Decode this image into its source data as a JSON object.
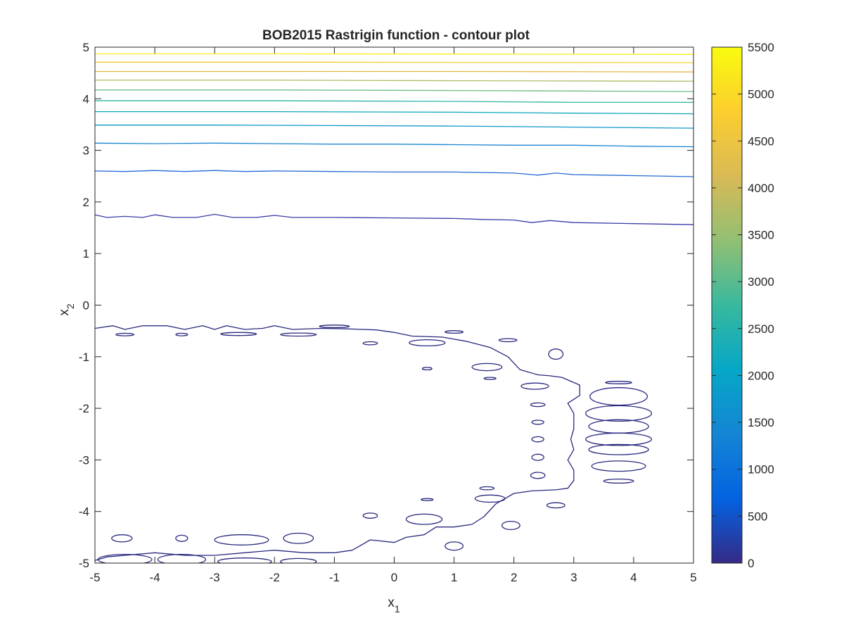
{
  "chart_data": {
    "type": "contour",
    "title": "BOB2015 Rastrigin function - contour plot",
    "xlabel": {
      "base": "x",
      "subscript": "1"
    },
    "ylabel": {
      "base": "x",
      "subscript": "2"
    },
    "xlim": [
      -5,
      5
    ],
    "ylim": [
      -5,
      5
    ],
    "xticks": [
      -5,
      -4,
      -3,
      -2,
      -1,
      0,
      1,
      2,
      3,
      4,
      5
    ],
    "yticks": [
      -5,
      -4,
      -3,
      -2,
      -1,
      0,
      1,
      2,
      3,
      4,
      5
    ],
    "grid": false,
    "colorbar": {
      "min": 0,
      "max": 5500,
      "ticks": [
        0,
        500,
        1000,
        1500,
        2000,
        2500,
        3000,
        3500,
        4000,
        4500,
        5000,
        5500
      ],
      "colormap": [
        "#352a87",
        "#0363e1",
        "#1485d4",
        "#06a7c6",
        "#38b99e",
        "#92bf73",
        "#d9ba56",
        "#fcce2e",
        "#f9fb0e"
      ]
    },
    "level_lines": [
      {
        "level": 500,
        "color": "#3a3aa8",
        "points": [
          [
            -5,
            1.75
          ],
          [
            -4.8,
            1.7
          ],
          [
            -4.5,
            1.72
          ],
          [
            -4.2,
            1.7
          ],
          [
            -4.0,
            1.75
          ],
          [
            -3.7,
            1.7
          ],
          [
            -3.3,
            1.7
          ],
          [
            -3.0,
            1.76
          ],
          [
            -2.7,
            1.7
          ],
          [
            -2.3,
            1.7
          ],
          [
            -2.0,
            1.74
          ],
          [
            -1.7,
            1.7
          ],
          [
            -1.0,
            1.7
          ],
          [
            0.0,
            1.69
          ],
          [
            1.0,
            1.68
          ],
          [
            1.5,
            1.66
          ],
          [
            2.0,
            1.65
          ],
          [
            2.3,
            1.6
          ],
          [
            2.6,
            1.64
          ],
          [
            3.0,
            1.6
          ],
          [
            4.0,
            1.58
          ],
          [
            5.0,
            1.56
          ]
        ]
      },
      {
        "level": 1000,
        "color": "#2569d4",
        "points": [
          [
            -5,
            2.6
          ],
          [
            -4.5,
            2.59
          ],
          [
            -4.0,
            2.61
          ],
          [
            -3.5,
            2.59
          ],
          [
            -3.0,
            2.61
          ],
          [
            -2.5,
            2.59
          ],
          [
            -2.0,
            2.6
          ],
          [
            -1.0,
            2.59
          ],
          [
            0.0,
            2.58
          ],
          [
            1.0,
            2.58
          ],
          [
            2.0,
            2.56
          ],
          [
            2.4,
            2.52
          ],
          [
            2.7,
            2.56
          ],
          [
            3.0,
            2.53
          ],
          [
            4.0,
            2.51
          ],
          [
            5.0,
            2.49
          ]
        ]
      },
      {
        "level": 1500,
        "color": "#1a85d0",
        "points": [
          [
            -5,
            3.14
          ],
          [
            -4.0,
            3.13
          ],
          [
            -3.0,
            3.14
          ],
          [
            -2.0,
            3.13
          ],
          [
            -1.0,
            3.12
          ],
          [
            0.0,
            3.12
          ],
          [
            1.0,
            3.11
          ],
          [
            2.0,
            3.1
          ],
          [
            3.0,
            3.1
          ],
          [
            4.0,
            3.08
          ],
          [
            5.0,
            3.07
          ]
        ]
      },
      {
        "level": 2000,
        "color": "#0f98c8",
        "points": [
          [
            -5,
            3.49
          ],
          [
            -3.0,
            3.49
          ],
          [
            -1.0,
            3.48
          ],
          [
            1.0,
            3.47
          ],
          [
            3.0,
            3.45
          ],
          [
            5.0,
            3.43
          ]
        ]
      },
      {
        "level": 2500,
        "color": "#0aa6b9",
        "points": [
          [
            -5,
            3.75
          ],
          [
            -2.0,
            3.75
          ],
          [
            1.0,
            3.74
          ],
          [
            3.0,
            3.72
          ],
          [
            5.0,
            3.71
          ]
        ]
      },
      {
        "level": 3000,
        "color": "#2cb4a3",
        "points": [
          [
            -5,
            3.96
          ],
          [
            -2.0,
            3.96
          ],
          [
            1.0,
            3.95
          ],
          [
            3.0,
            3.93
          ],
          [
            5.0,
            3.93
          ]
        ]
      },
      {
        "level": 3500,
        "color": "#6cbd83",
        "points": [
          [
            -5,
            4.17
          ],
          [
            -2.0,
            4.17
          ],
          [
            1.0,
            4.16
          ],
          [
            3.0,
            4.15
          ],
          [
            5.0,
            4.14
          ]
        ]
      },
      {
        "level": 4000,
        "color": "#aebb63",
        "points": [
          [
            -5,
            4.36
          ],
          [
            -2.0,
            4.36
          ],
          [
            1.0,
            4.35
          ],
          [
            5.0,
            4.34
          ]
        ]
      },
      {
        "level": 4500,
        "color": "#e6b846",
        "points": [
          [
            -5,
            4.53
          ],
          [
            -2.0,
            4.53
          ],
          [
            1.0,
            4.53
          ],
          [
            5.0,
            4.52
          ]
        ]
      },
      {
        "level": 5000,
        "color": "#f7cf2c",
        "points": [
          [
            -5,
            4.71
          ],
          [
            -2.0,
            4.71
          ],
          [
            5.0,
            4.7
          ]
        ]
      },
      {
        "level": 5500,
        "color": "#f6f018",
        "points": [
          [
            -5,
            4.87
          ],
          [
            -2.0,
            4.87
          ],
          [
            5.0,
            4.86
          ]
        ]
      }
    ],
    "low_contours": {
      "level": 250,
      "color": "#28287e",
      "outer_path": [
        [
          -5,
          -0.45
        ],
        [
          -4.7,
          -0.4
        ],
        [
          -4.5,
          -0.47
        ],
        [
          -4.2,
          -0.4
        ],
        [
          -3.8,
          -0.4
        ],
        [
          -3.5,
          -0.47
        ],
        [
          -3.2,
          -0.4
        ],
        [
          -3.0,
          -0.47
        ],
        [
          -2.8,
          -0.4
        ],
        [
          -2.5,
          -0.47
        ],
        [
          -2.2,
          -0.45
        ],
        [
          -2.0,
          -0.4
        ],
        [
          -1.7,
          -0.47
        ],
        [
          -1.2,
          -0.45
        ],
        [
          -0.8,
          -0.46
        ],
        [
          -0.3,
          -0.48
        ],
        [
          0.0,
          -0.53
        ],
        [
          0.3,
          -0.6
        ],
        [
          0.8,
          -0.62
        ],
        [
          1.2,
          -0.7
        ],
        [
          1.6,
          -0.82
        ],
        [
          1.9,
          -1.0
        ],
        [
          2.1,
          -1.25
        ],
        [
          2.4,
          -1.35
        ],
        [
          2.6,
          -1.37
        ],
        [
          2.8,
          -1.4
        ],
        [
          3.1,
          -1.55
        ],
        [
          3.1,
          -1.75
        ],
        [
          2.9,
          -1.9
        ],
        [
          3.0,
          -2.1
        ],
        [
          3.0,
          -2.4
        ],
        [
          2.95,
          -2.6
        ],
        [
          3.0,
          -2.8
        ],
        [
          2.9,
          -3.0
        ],
        [
          3.0,
          -3.2
        ],
        [
          3.0,
          -3.4
        ],
        [
          2.9,
          -3.55
        ],
        [
          2.7,
          -3.58
        ],
        [
          2.3,
          -3.6
        ],
        [
          2.0,
          -3.65
        ],
        [
          1.7,
          -3.85
        ],
        [
          1.5,
          -4.1
        ],
        [
          1.3,
          -4.25
        ],
        [
          1.0,
          -4.3
        ],
        [
          0.7,
          -4.3
        ],
        [
          0.5,
          -4.45
        ],
        [
          0.2,
          -4.5
        ],
        [
          0.0,
          -4.6
        ],
        [
          -0.4,
          -4.55
        ],
        [
          -0.7,
          -4.75
        ],
        [
          -1.0,
          -4.8
        ],
        [
          -1.5,
          -4.8
        ],
        [
          -2.0,
          -4.75
        ],
        [
          -2.5,
          -4.8
        ],
        [
          -3.0,
          -4.85
        ],
        [
          -3.5,
          -4.85
        ],
        [
          -4.0,
          -4.8
        ],
        [
          -4.5,
          -4.85
        ],
        [
          -4.8,
          -4.88
        ],
        [
          -5.0,
          -4.95
        ]
      ],
      "islands": [
        {
          "cx": -4.5,
          "cy": -0.57,
          "rx": 0.15,
          "ry": 0.025
        },
        {
          "cx": -3.55,
          "cy": -0.57,
          "rx": 0.1,
          "ry": 0.025
        },
        {
          "cx": -2.6,
          "cy": -0.56,
          "rx": 0.3,
          "ry": 0.03
        },
        {
          "cx": -1.6,
          "cy": -0.57,
          "rx": 0.3,
          "ry": 0.03
        },
        {
          "cx": -1.0,
          "cy": -0.41,
          "rx": 0.25,
          "ry": 0.025
        },
        {
          "cx": 1.0,
          "cy": -0.52,
          "rx": 0.15,
          "ry": 0.025
        },
        {
          "cx": -0.4,
          "cy": -0.74,
          "rx": 0.12,
          "ry": 0.03
        },
        {
          "cx": 0.55,
          "cy": -0.73,
          "rx": 0.3,
          "ry": 0.06
        },
        {
          "cx": 1.9,
          "cy": -0.68,
          "rx": 0.15,
          "ry": 0.03
        },
        {
          "cx": 0.55,
          "cy": -1.23,
          "rx": 0.08,
          "ry": 0.025
        },
        {
          "cx": 1.55,
          "cy": -1.2,
          "rx": 0.25,
          "ry": 0.07
        },
        {
          "cx": 1.6,
          "cy": -1.42,
          "rx": 0.1,
          "ry": 0.02
        },
        {
          "cx": 2.7,
          "cy": -0.95,
          "rx": 0.12,
          "ry": 0.1
        },
        {
          "cx": 2.35,
          "cy": -1.57,
          "rx": 0.23,
          "ry": 0.06
        },
        {
          "cx": 2.4,
          "cy": -1.93,
          "rx": 0.12,
          "ry": 0.035
        },
        {
          "cx": 2.4,
          "cy": -2.27,
          "rx": 0.1,
          "ry": 0.04
        },
        {
          "cx": 2.4,
          "cy": -2.6,
          "rx": 0.1,
          "ry": 0.05
        },
        {
          "cx": 2.4,
          "cy": -2.95,
          "rx": 0.1,
          "ry": 0.06
        },
        {
          "cx": 2.4,
          "cy": -3.3,
          "rx": 0.12,
          "ry": 0.06
        },
        {
          "cx": 1.55,
          "cy": -3.55,
          "rx": 0.12,
          "ry": 0.03
        },
        {
          "cx": 0.55,
          "cy": -3.77,
          "rx": 0.1,
          "ry": 0.02
        },
        {
          "cx": 1.6,
          "cy": -3.75,
          "rx": 0.25,
          "ry": 0.07
        },
        {
          "cx": 2.7,
          "cy": -3.88,
          "rx": 0.15,
          "ry": 0.05
        },
        {
          "cx": 0.5,
          "cy": -4.15,
          "rx": 0.3,
          "ry": 0.1
        },
        {
          "cx": -0.4,
          "cy": -4.08,
          "rx": 0.12,
          "ry": 0.05
        },
        {
          "cx": 1.95,
          "cy": -4.27,
          "rx": 0.15,
          "ry": 0.08
        },
        {
          "cx": 3.75,
          "cy": -1.5,
          "rx": 0.22,
          "ry": 0.025
        },
        {
          "cx": 3.75,
          "cy": -1.77,
          "rx": 0.48,
          "ry": 0.17
        },
        {
          "cx": 3.75,
          "cy": -2.1,
          "rx": 0.55,
          "ry": 0.15
        },
        {
          "cx": 3.75,
          "cy": -2.35,
          "rx": 0.5,
          "ry": 0.13
        },
        {
          "cx": 3.75,
          "cy": -2.6,
          "rx": 0.55,
          "ry": 0.12
        },
        {
          "cx": 3.75,
          "cy": -2.8,
          "rx": 0.5,
          "ry": 0.1
        },
        {
          "cx": 3.75,
          "cy": -3.12,
          "rx": 0.45,
          "ry": 0.1
        },
        {
          "cx": 3.75,
          "cy": -3.41,
          "rx": 0.25,
          "ry": 0.04
        },
        {
          "cx": -4.55,
          "cy": -4.52,
          "rx": 0.17,
          "ry": 0.07
        },
        {
          "cx": -3.55,
          "cy": -4.52,
          "rx": 0.1,
          "ry": 0.06
        },
        {
          "cx": -2.55,
          "cy": -4.55,
          "rx": 0.45,
          "ry": 0.1
        },
        {
          "cx": -1.6,
          "cy": -4.52,
          "rx": 0.25,
          "ry": 0.1
        },
        {
          "cx": 1.0,
          "cy": -4.67,
          "rx": 0.15,
          "ry": 0.08
        },
        {
          "cx": -4.5,
          "cy": -4.93,
          "rx": 0.45,
          "ry": 0.1
        },
        {
          "cx": -3.55,
          "cy": -4.93,
          "rx": 0.4,
          "ry": 0.1
        },
        {
          "cx": -2.5,
          "cy": -4.97,
          "rx": 0.45,
          "ry": 0.07
        },
        {
          "cx": -1.6,
          "cy": -4.97,
          "rx": 0.3,
          "ry": 0.06
        }
      ]
    }
  }
}
